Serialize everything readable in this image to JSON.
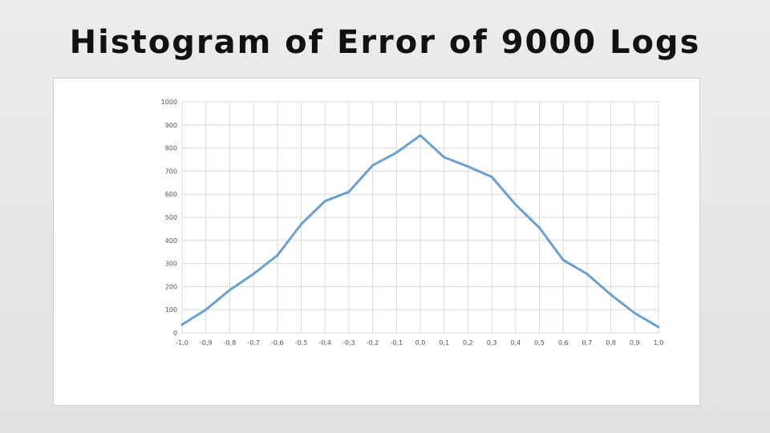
{
  "slide": {
    "title": "Histogram of Error of 9000 Logs"
  },
  "chart_data": {
    "type": "line",
    "title": "",
    "xlabel": "",
    "ylabel": "",
    "x": [
      "-1,0",
      "-0,9",
      "-0,8",
      "-0,7",
      "-0,6",
      "-0,5",
      "-0,4",
      "-0,3",
      "-0,2",
      "-0,1",
      "0,0",
      "0,1",
      "0,2",
      "0,3",
      "0,4",
      "0,5",
      "0,6",
      "0,7",
      "0,8",
      "0,9",
      "1,0"
    ],
    "series": [
      {
        "values": [
          35,
          100,
          185,
          255,
          335,
          470,
          570,
          610,
          725,
          780,
          855,
          760,
          720,
          675,
          555,
          455,
          315,
          255,
          165,
          85,
          25
        ]
      }
    ],
    "ylim": [
      0,
      1000
    ],
    "yticks": [
      0,
      100,
      200,
      300,
      400,
      500,
      600,
      700,
      800,
      900,
      1000
    ],
    "grid": true,
    "legend": "none",
    "colors": {
      "line": "#6a9fcf",
      "grid": "#d9d9d9"
    }
  }
}
